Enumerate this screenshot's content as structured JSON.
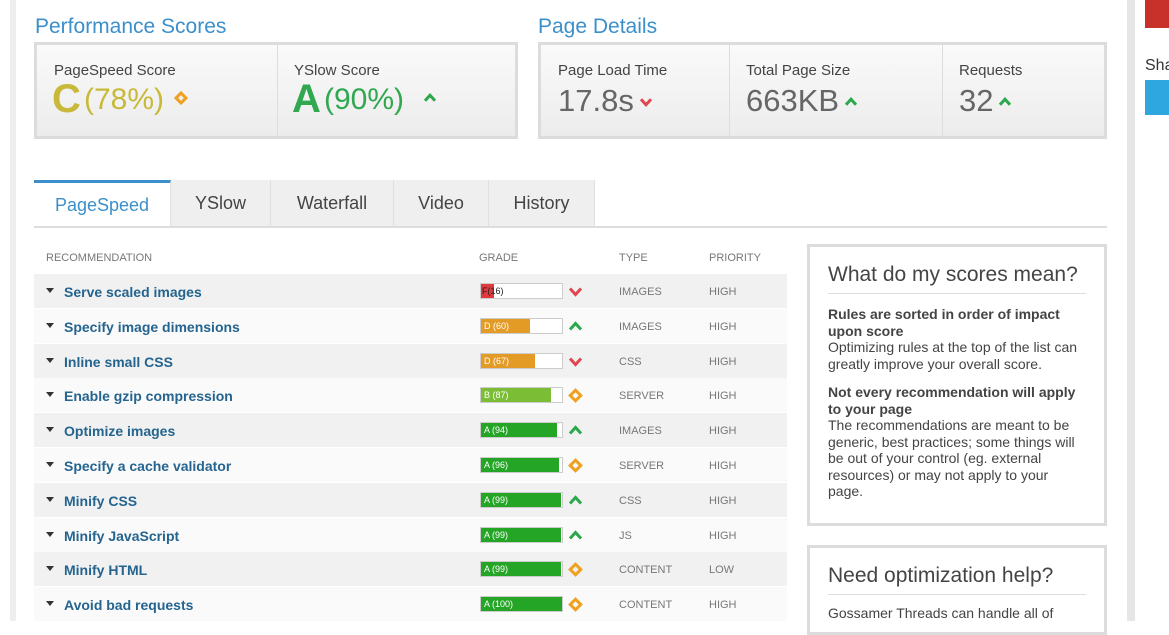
{
  "performance": {
    "title": "Performance Scores",
    "scores": [
      {
        "label": "PageSpeed Score",
        "grade": "C",
        "value": "(78%)",
        "trend": "same",
        "color": "#c9b93a"
      },
      {
        "label": "YSlow Score",
        "grade": "A",
        "value": "(90%)",
        "trend": "up",
        "color": "#2fa84f"
      }
    ]
  },
  "details": {
    "title": "Page Details",
    "items": [
      {
        "label": "Page Load Time",
        "value": "17.8s",
        "trend": "down"
      },
      {
        "label": "Total Page Size",
        "value": "663KB",
        "trend": "up"
      },
      {
        "label": "Requests",
        "value": "32",
        "trend": "up"
      }
    ]
  },
  "tabs": [
    "PageSpeed",
    "YSlow",
    "Waterfall",
    "Video",
    "History"
  ],
  "table": {
    "headers": [
      "RECOMMENDATION",
      "GRADE",
      "TYPE",
      "PRIORITY"
    ],
    "rows": [
      {
        "name": "Serve scaled images",
        "grade": "F(16)",
        "score": 16,
        "color": "#e03a3e",
        "trend": "down",
        "type": "IMAGES",
        "priority": "HIGH"
      },
      {
        "name": "Specify image dimensions",
        "grade": "D (60)",
        "score": 60,
        "color": "#e39b26",
        "trend": "up",
        "type": "IMAGES",
        "priority": "HIGH"
      },
      {
        "name": "Inline small CSS",
        "grade": "D (67)",
        "score": 67,
        "color": "#e39b26",
        "trend": "down",
        "type": "CSS",
        "priority": "HIGH"
      },
      {
        "name": "Enable gzip compression",
        "grade": "B (87)",
        "score": 87,
        "color": "#7cbd36",
        "trend": "same",
        "type": "SERVER",
        "priority": "HIGH"
      },
      {
        "name": "Optimize images",
        "grade": "A (94)",
        "score": 94,
        "color": "#25a526",
        "trend": "up",
        "type": "IMAGES",
        "priority": "HIGH"
      },
      {
        "name": "Specify a cache validator",
        "grade": "A (96)",
        "score": 96,
        "color": "#25a526",
        "trend": "same",
        "type": "SERVER",
        "priority": "HIGH"
      },
      {
        "name": "Minify CSS",
        "grade": "A (99)",
        "score": 99,
        "color": "#25a526",
        "trend": "up",
        "type": "CSS",
        "priority": "HIGH"
      },
      {
        "name": "Minify JavaScript",
        "grade": "A (99)",
        "score": 99,
        "color": "#25a526",
        "trend": "up",
        "type": "JS",
        "priority": "HIGH"
      },
      {
        "name": "Minify HTML",
        "grade": "A (99)",
        "score": 99,
        "color": "#25a526",
        "trend": "same",
        "type": "CONTENT",
        "priority": "LOW"
      },
      {
        "name": "Avoid bad requests",
        "grade": "A (100)",
        "score": 100,
        "color": "#25a526",
        "trend": "same",
        "type": "CONTENT",
        "priority": "HIGH"
      }
    ]
  },
  "sidebar": {
    "title": "What do my scores mean?",
    "items": [
      {
        "heading": "Rules are sorted in order of impact upon score",
        "text": "Optimizing rules at the top of the list can greatly improve your overall score."
      },
      {
        "heading": "Not every recommendation will apply to your page",
        "text": "The recommendations are meant to be generic, best practices; some things will be out of your control (eg. external resources) or may not apply to your page."
      }
    ]
  },
  "help": {
    "title": "Need optimization help?",
    "text": "Gossamer Threads can handle all of"
  },
  "share": "Sha"
}
